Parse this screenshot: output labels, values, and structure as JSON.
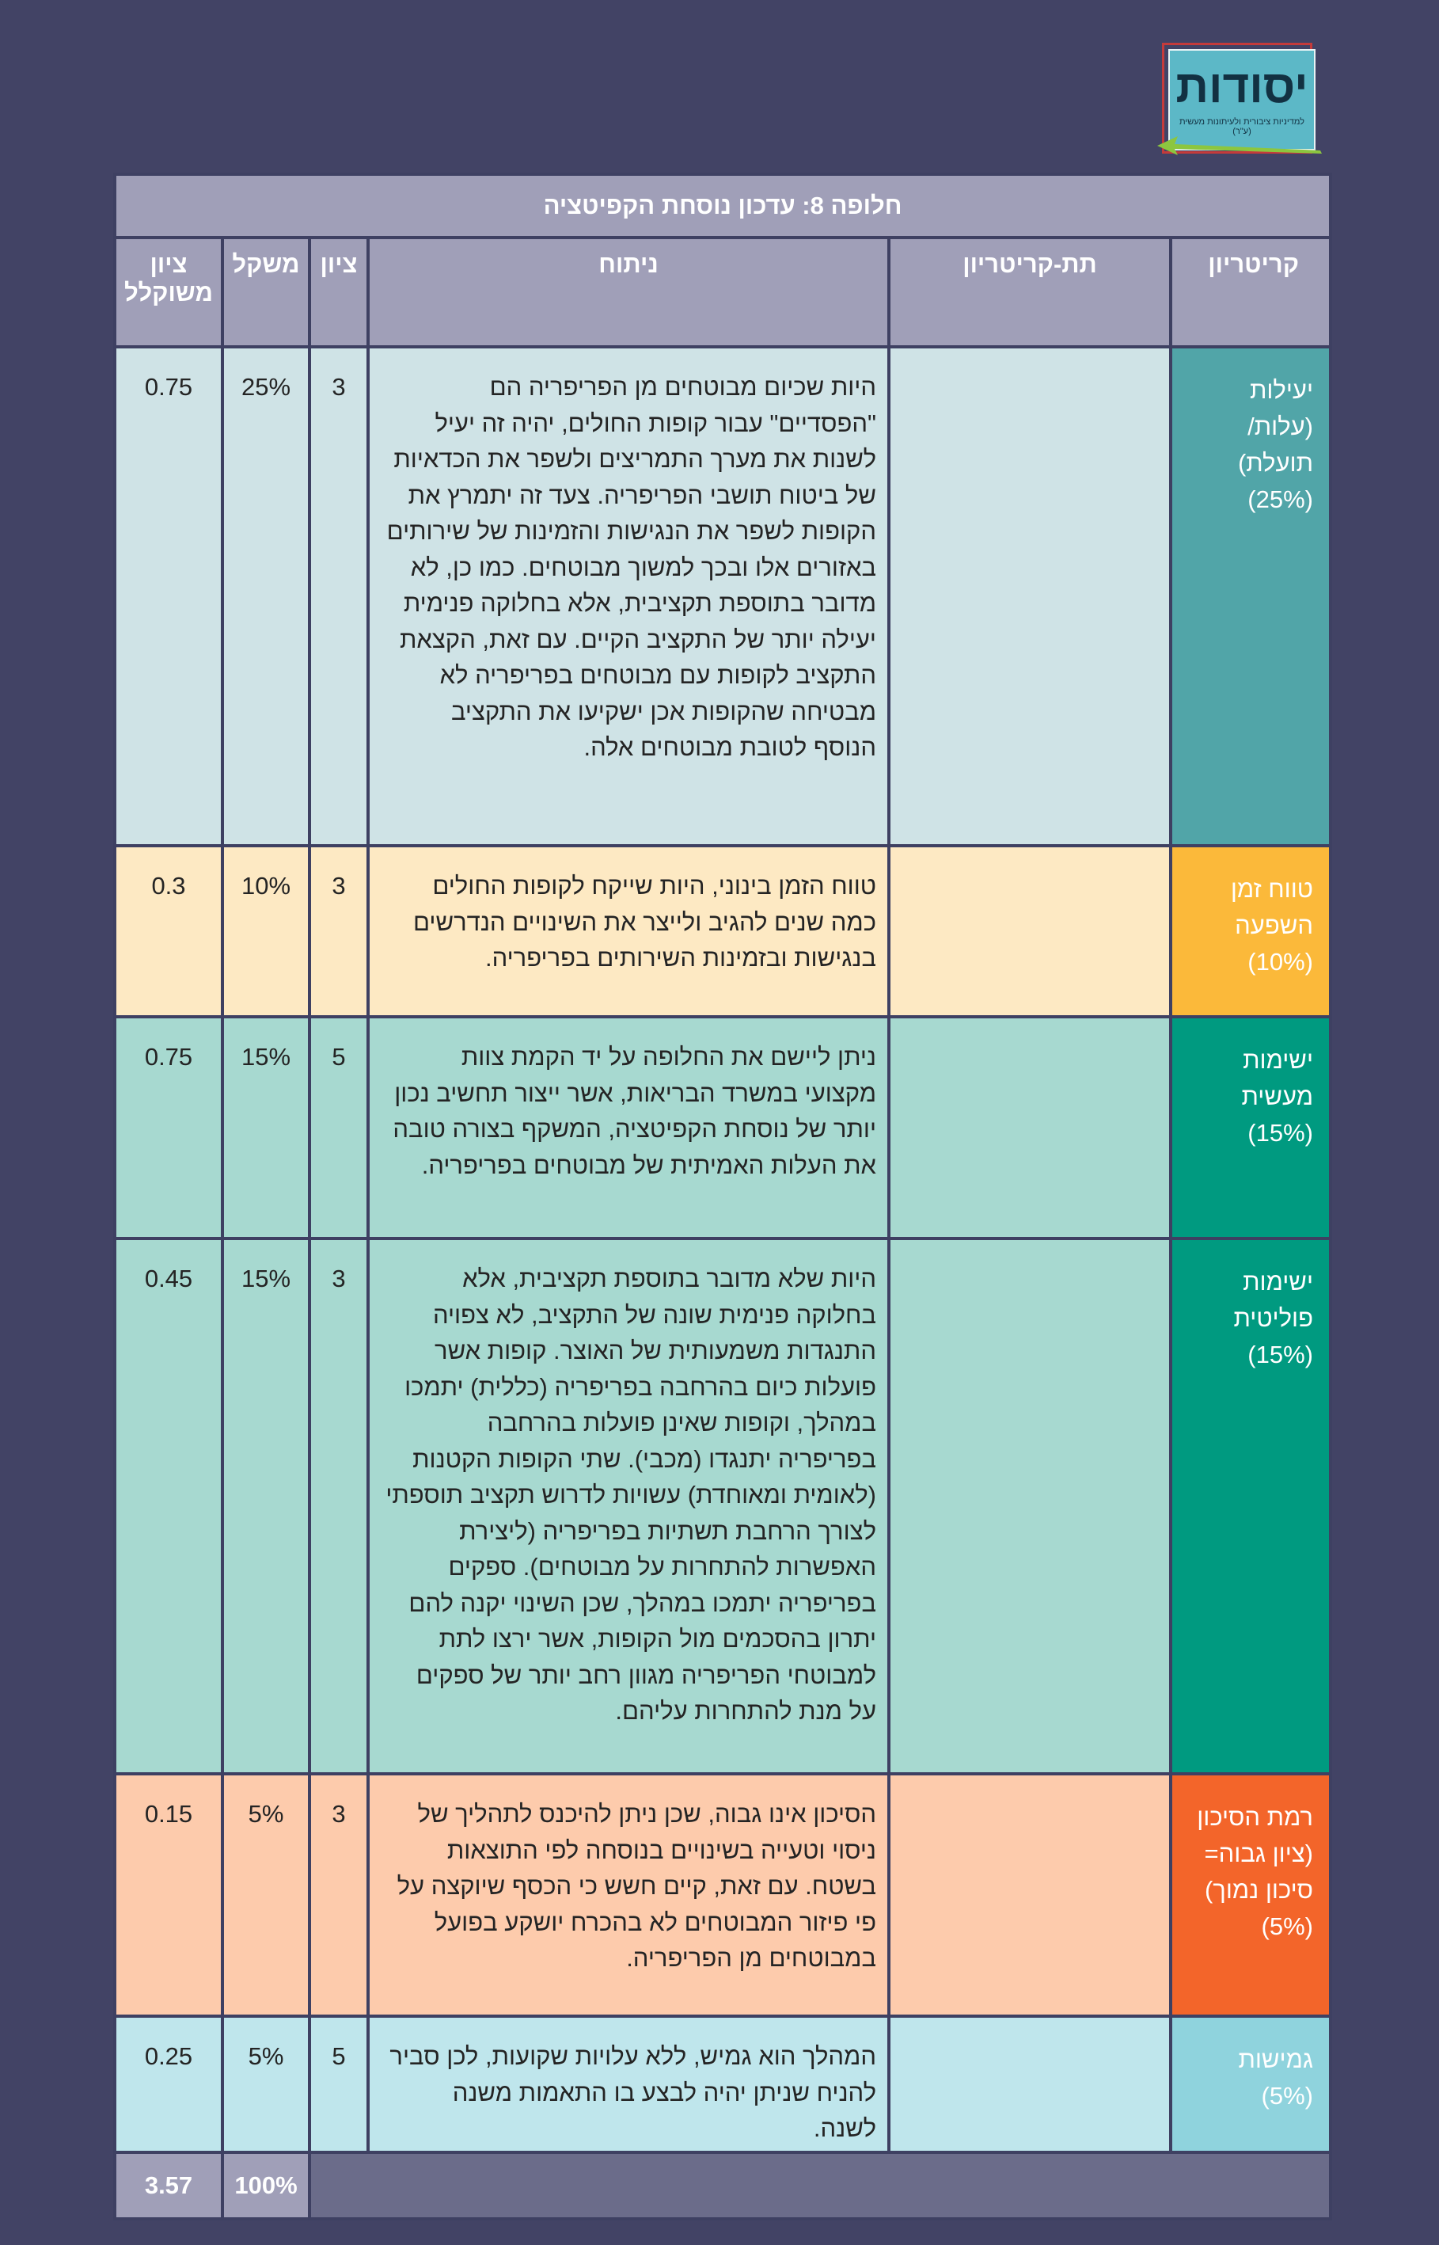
{
  "logo": {
    "title": "יסודות",
    "subtitle": "למדיניות ציבורית ולעיתונות מעשית (ע\"ר)"
  },
  "table": {
    "title": "חלופה 8: עדכון נוסחת הקפיטציה",
    "headers": {
      "criterion": "קריטריון",
      "subcriterion": "תת-קריטריון",
      "analysis": "ניתוח",
      "score": "ציון",
      "weight": "משקל",
      "weighted": "ציון משוקלל"
    },
    "rows": [
      {
        "criterion": "יעילות (עלות/ תועלת) (25%)",
        "subcriterion": "",
        "analysis": "היות שכיום מבוטחים מן הפריפריה הם \"הפסדיים\" עבור קופות החולים, יהיה זה יעיל לשנות את מערך התמריצים ולשפר את הכדאיות של ביטוח תושבי הפריפריה. צעד זה יתמרץ את הקופות לשפר את הנגישות והזמינות של שירותים באזורים אלו ובכך למשוך מבוטחים. כמו כן, לא מדובר בתוספת תקציבית, אלא בחלוקה פנימית יעילה יותר של התקציב הקיים. עם זאת, הקצאת התקציב לקופות עם מבוטחים בפריפריה לא מבטיחה שהקופות אכן ישקיעו את התקציב הנוסף לטובת מבוטחים אלה.",
        "score": "3",
        "weight": "25%",
        "weighted": "0.75",
        "critColor": "#51a5a8",
        "cellColor": "#cfe3e6"
      },
      {
        "criterion": "טווח זמן השפעה (10%)",
        "subcriterion": "",
        "analysis": "טווח הזמן בינוני, היות שייקח לקופות החולים כמה שנים להגיב ולייצר את השינויים הנדרשים בנגישות ובזמינות השירותים בפריפריה.",
        "score": "3",
        "weight": "10%",
        "weighted": "0.3",
        "critColor": "#fbb93a",
        "cellColor": "#fde9c3"
      },
      {
        "criterion": "ישימות מעשית (15%)",
        "subcriterion": "",
        "analysis": "ניתן ליישם את החלופה על יד הקמת צוות מקצועי במשרד הבריאות, אשר ייצור תחשיב נכון יותר של נוסחת הקפיטציה, המשקף בצורה טובה את העלות האמיתית של מבוטחים בפריפריה.",
        "score": "5",
        "weight": "15%",
        "weighted": "0.75",
        "critColor": "#009a80",
        "cellColor": "#a7d9d0"
      },
      {
        "criterion": "ישימות פוליטית (15%)",
        "subcriterion": "",
        "analysis": "היות שלא מדובר בתוספת תקציבית, אלא בחלוקה פנימית שונה של התקציב, לא צפויה התנגדות משמעותית של האוצר. קופות אשר פועלות כיום בהרחבה בפריפריה (כללית) יתמכו במהלך, וקופות שאינן פועלות בהרחבה בפריפריה יתנגדו (מכבי). שתי הקופות הקטנות (לאומית ומאוחדת) עשויות לדרוש תקציב תוספתי לצורך הרחבת תשתיות בפריפריה (ליצירת האפשרות להתחרות על מבוטחים). ספקים בפריפריה יתמכו במהלך, שכן השינוי יקנה להם יתרון בהסכמים מול הקופות, אשר ירצו לתת למבוטחי הפריפריה מגוון רחב יותר של ספקים על מנת להתחרות עליהם.",
        "score": "3",
        "weight": "15%",
        "weighted": "0.45",
        "critColor": "#009a80",
        "cellColor": "#a7d9d0"
      },
      {
        "criterion": "רמת הסיכון (ציון גבוה= סיכון נמוך) (5%)",
        "subcriterion": "",
        "analysis": "הסיכון אינו גבוה, שכן ניתן להיכנס לתהליך של ניסוי וטעייה בשינויים בנוסחה לפי התוצאות בשטח. עם זאת, קיים חשש כי הכסף שיוקצה על פי פיזור המבוטחים לא בהכרח יושקע בפועל במבוטחים מן הפריפריה.",
        "score": "3",
        "weight": "5%",
        "weighted": "0.15",
        "critColor": "#f3652a",
        "cellColor": "#fdcbac"
      },
      {
        "criterion": "גמישות (5%)",
        "subcriterion": "",
        "analysis": "המהלך הוא גמיש, ללא עלויות שקועות, לכן סביר להניח שניתן יהיה לבצע בו התאמות משנה לשנה.",
        "score": "5",
        "weight": "5%",
        "weighted": "0.25",
        "critColor": "#8fd3dd",
        "cellColor": "#bfe6ec"
      }
    ],
    "total": {
      "weighted": "3.57",
      "weight": "100%"
    }
  }
}
